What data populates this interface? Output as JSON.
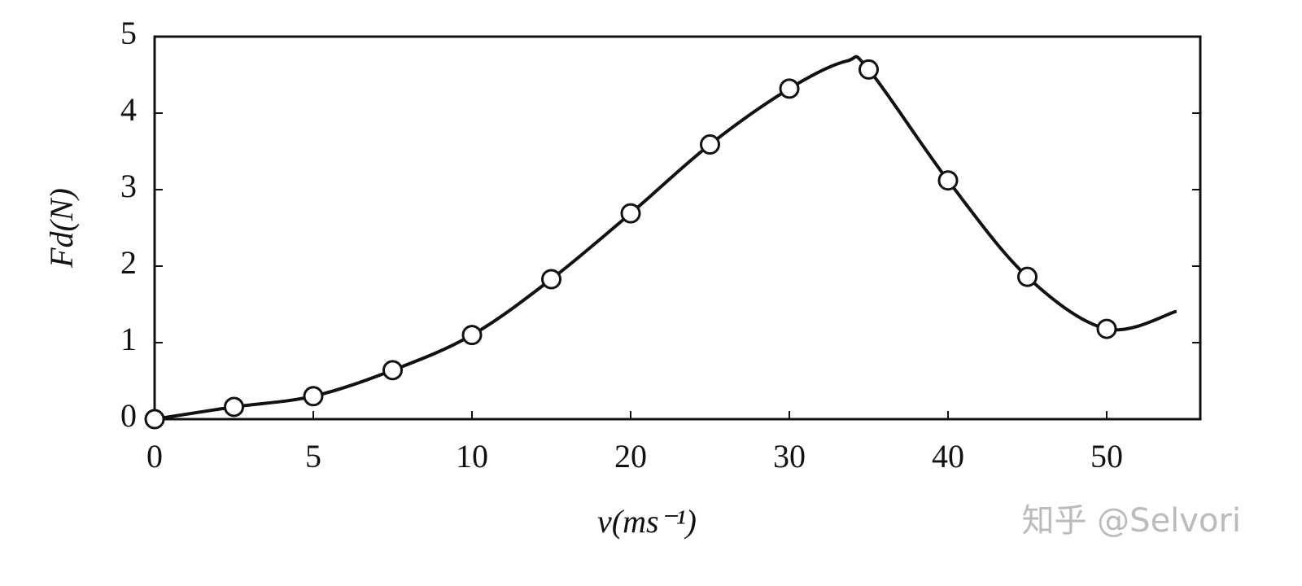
{
  "chart_data": {
    "type": "line",
    "x_label": "v(ms⁻¹)",
    "y_label": "Fd(N)",
    "watermark": "知乎 @Selvori",
    "xlim": [
      0,
      56
    ],
    "xticks": [
      0,
      5,
      10,
      20,
      30,
      40,
      50
    ],
    "ylim": [
      0,
      5
    ],
    "yticks": [
      0,
      1,
      2,
      3,
      4,
      5
    ],
    "series": [
      {
        "color": "#111111",
        "marker": false,
        "x": [
          0,
          2.5,
          5,
          7.5,
          10,
          15,
          20,
          25,
          30,
          33.6,
          35,
          40,
          45,
          50,
          54.4
        ],
        "values": [
          0,
          0.16,
          0.3,
          0.64,
          1.1,
          1.83,
          2.69,
          3.59,
          4.32,
          4.68,
          4.57,
          3.12,
          1.86,
          1.18,
          1.41
        ]
      },
      {
        "color": "#111111",
        "marker": true,
        "x": [
          0,
          2.5,
          5,
          7.5,
          10,
          15,
          20,
          25,
          30,
          35,
          40,
          45,
          50
        ],
        "values": [
          0,
          0.16,
          0.3,
          0.64,
          1.1,
          1.83,
          2.69,
          3.59,
          4.32,
          4.57,
          3.12,
          1.86,
          1.18
        ]
      }
    ]
  }
}
